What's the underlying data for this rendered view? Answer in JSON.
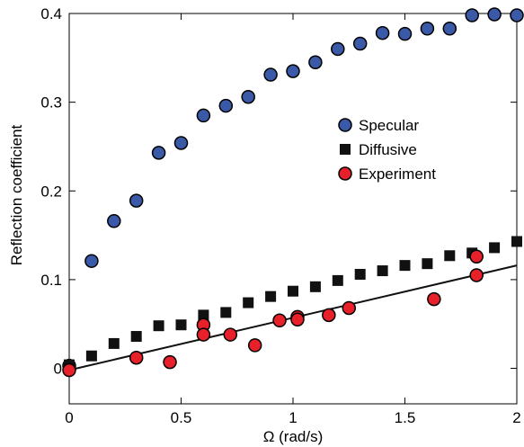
{
  "chart_data": {
    "type": "scatter",
    "title": "",
    "xlabel": "Ω  (rad/s)",
    "ylabel": "Reflection coefficient",
    "xlim": [
      0,
      2
    ],
    "ylim": [
      -0.04,
      0.4
    ],
    "xticks": [
      0,
      0.5,
      1,
      1.5,
      2
    ],
    "xtick_labels": [
      "0",
      "0.5",
      "1",
      "1.5",
      "2"
    ],
    "yticks": [
      0,
      0.1,
      0.2,
      0.3,
      0.4
    ],
    "ytick_labels": [
      "0",
      "0.1",
      "0.2",
      "0.3",
      "0.4"
    ],
    "grid": false,
    "legend_position": "center-right",
    "series": [
      {
        "name": "Specular",
        "marker": "circle",
        "color": "#3a5aa8",
        "x": [
          0,
          0.1,
          0.2,
          0.3,
          0.4,
          0.5,
          0.6,
          0.7,
          0.8,
          0.9,
          1.0,
          1.1,
          1.2,
          1.3,
          1.4,
          1.5,
          1.6,
          1.7,
          1.8,
          1.9,
          2.0
        ],
        "y": [
          0.003,
          0.121,
          0.166,
          0.189,
          0.243,
          0.254,
          0.285,
          0.296,
          0.306,
          0.331,
          0.335,
          0.345,
          0.36,
          0.366,
          0.378,
          0.377,
          0.383,
          0.383,
          0.398,
          0.399,
          0.398
        ]
      },
      {
        "name": "Diffusive",
        "marker": "square",
        "color": "#111111",
        "x": [
          0,
          0.1,
          0.2,
          0.3,
          0.4,
          0.5,
          0.6,
          0.7,
          0.8,
          0.9,
          1.0,
          1.1,
          1.2,
          1.3,
          1.4,
          1.5,
          1.6,
          1.7,
          1.8,
          1.9,
          2.0
        ],
        "y": [
          0.004,
          0.014,
          0.028,
          0.036,
          0.048,
          0.049,
          0.06,
          0.063,
          0.074,
          0.081,
          0.087,
          0.092,
          0.099,
          0.106,
          0.11,
          0.116,
          0.118,
          0.127,
          0.13,
          0.136,
          0.143
        ]
      },
      {
        "name": "Experiment",
        "marker": "circle",
        "color": "#e8202a",
        "x": [
          0,
          0.3,
          0.45,
          0.6,
          0.6,
          0.72,
          0.83,
          0.94,
          1.02,
          1.02,
          1.16,
          1.25,
          1.63,
          1.82,
          1.82
        ],
        "y": [
          -0.002,
          0.012,
          0.007,
          0.049,
          0.038,
          0.038,
          0.026,
          0.054,
          0.058,
          0.055,
          0.06,
          0.068,
          0.078,
          0.105,
          0.126
        ]
      }
    ],
    "fit_line": {
      "x": [
        0,
        2
      ],
      "y": [
        -0.002,
        0.116
      ],
      "color": "#111111"
    }
  }
}
